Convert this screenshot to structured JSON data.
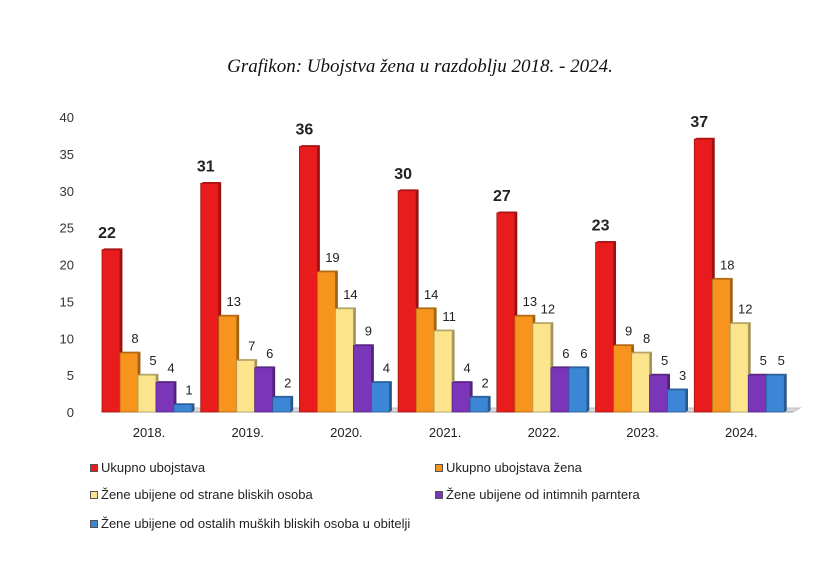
{
  "chart_data": {
    "type": "bar",
    "title": "Grafikon: Ubojstva žena u razdoblju 2018. - 2024.",
    "categories": [
      "2018.",
      "2019.",
      "2020.",
      "2021.",
      "2022.",
      "2023.",
      "2024."
    ],
    "series": [
      {
        "name": "Ukupno ubojstava",
        "values": [
          22,
          31,
          36,
          30,
          27,
          23,
          37
        ],
        "color": "#e81c1c"
      },
      {
        "name": "Ukupno ubojstava žena",
        "values": [
          8,
          13,
          19,
          14,
          13,
          9,
          18
        ],
        "color": "#f7941d"
      },
      {
        "name": "Žene ubijene od strane bliskih osoba",
        "values": [
          5,
          7,
          14,
          11,
          12,
          8,
          12
        ],
        "color": "#fbe48c"
      },
      {
        "name": "Žene ubijene od intimnih parntera",
        "values": [
          4,
          6,
          9,
          4,
          6,
          5,
          5
        ],
        "color": "#7b35b9"
      },
      {
        "name": "Žene ubijene od ostalih muških bliskih osoba u obitelji",
        "values": [
          1,
          2,
          4,
          2,
          6,
          3,
          5
        ],
        "color": "#3c86d6"
      }
    ],
    "ylim": [
      0,
      40
    ],
    "yticks": [
      0,
      5,
      10,
      15,
      20,
      25,
      30,
      35,
      40
    ],
    "grid": false,
    "legend_position": "bottom"
  }
}
